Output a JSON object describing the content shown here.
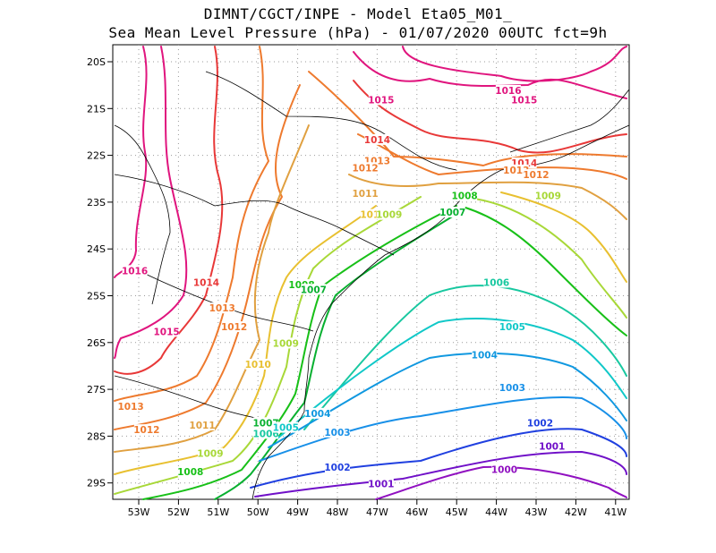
{
  "title": {
    "line1": "DIMNT/CGCT/INPE -  Model Eta05_M01_",
    "line2": "Sea Mean Level Pressure (hPa) - 01/07/2020 00UTC fct=9h"
  },
  "axes": {
    "lon_ticks": [
      "53W",
      "52W",
      "51W",
      "50W",
      "49W",
      "48W",
      "47W",
      "46W",
      "45W",
      "44W",
      "43W",
      "42W",
      "41W"
    ],
    "lat_ticks": [
      "20S",
      "21S",
      "22S",
      "23S",
      "24S",
      "25S",
      "26S",
      "27S",
      "28S",
      "29S"
    ],
    "grid": "dotted"
  },
  "colors": {
    "1016": "#e0157e",
    "1015": "#e0157e",
    "1014": "#e83838",
    "1013": "#ee7a2e",
    "1012": "#ee7a2e",
    "1011": "#e0a040",
    "1010": "#e8c030",
    "1009": "#a8d838",
    "1008": "#18c018",
    "1007": "#08b030",
    "1006": "#18c8a0",
    "1005": "#10c8c8",
    "1004": "#1098e0",
    "1003": "#1890e8",
    "1002": "#2040e0",
    "1001": "#7010c8",
    "1000": "#9010c0",
    "map_lines": "#000000"
  },
  "labels": [
    {
      "text": "1016",
      "lon": -53.1,
      "lat": -24.5,
      "level": "1016"
    },
    {
      "text": "1016",
      "lon": -43.7,
      "lat": -20.65,
      "level": "1016"
    },
    {
      "text": "1015",
      "lon": -46.9,
      "lat": -20.85,
      "level": "1015"
    },
    {
      "text": "1015",
      "lon": -43.3,
      "lat": -20.85,
      "level": "1015"
    },
    {
      "text": "1015",
      "lon": -52.3,
      "lat": -25.8,
      "level": "1015"
    },
    {
      "text": "1014",
      "lon": -51.3,
      "lat": -24.75,
      "level": "1014"
    },
    {
      "text": "1014",
      "lon": -47.0,
      "lat": -21.7,
      "level": "1014"
    },
    {
      "text": "1014",
      "lon": -43.3,
      "lat": -22.2,
      "level": "1014"
    },
    {
      "text": "1013",
      "lon": -50.9,
      "lat": -25.3,
      "level": "1013"
    },
    {
      "text": "1013",
      "lon": -53.2,
      "lat": -27.4,
      "level": "1013"
    },
    {
      "text": "1013",
      "lon": -47.0,
      "lat": -22.15,
      "level": "1013"
    },
    {
      "text": "1013",
      "lon": -43.5,
      "lat": -22.35,
      "level": "1013"
    },
    {
      "text": "1012",
      "lon": -50.6,
      "lat": -25.7,
      "level": "1012"
    },
    {
      "text": "1012",
      "lon": -52.8,
      "lat": -27.9,
      "level": "1012"
    },
    {
      "text": "1012",
      "lon": -47.3,
      "lat": -22.3,
      "level": "1012"
    },
    {
      "text": "1012",
      "lon": -43.0,
      "lat": -22.45,
      "level": "1012"
    },
    {
      "text": "1011",
      "lon": -51.4,
      "lat": -27.8,
      "level": "1011"
    },
    {
      "text": "1011",
      "lon": -47.3,
      "lat": -22.85,
      "level": "1011"
    },
    {
      "text": "1010",
      "lon": -50.0,
      "lat": -26.5,
      "level": "1010"
    },
    {
      "text": "1010",
      "lon": -47.1,
      "lat": -23.3,
      "level": "1010"
    },
    {
      "text": "1009",
      "lon": -49.3,
      "lat": -26.05,
      "level": "1009"
    },
    {
      "text": "1009",
      "lon": -51.2,
      "lat": -28.4,
      "level": "1009"
    },
    {
      "text": "1009",
      "lon": -46.7,
      "lat": -23.3,
      "level": "1009"
    },
    {
      "text": "1009",
      "lon": -42.7,
      "lat": -22.9,
      "level": "1009"
    },
    {
      "text": "1008",
      "lon": -48.9,
      "lat": -24.8,
      "level": "1008"
    },
    {
      "text": "1008",
      "lon": -51.7,
      "lat": -28.8,
      "level": "1008"
    },
    {
      "text": "1008",
      "lon": -44.8,
      "lat": -22.9,
      "level": "1008"
    },
    {
      "text": "1007",
      "lon": -48.6,
      "lat": -24.9,
      "level": "1007"
    },
    {
      "text": "1007",
      "lon": -49.8,
      "lat": -27.75,
      "level": "1007"
    },
    {
      "text": "1007",
      "lon": -45.1,
      "lat": -23.25,
      "level": "1007"
    },
    {
      "text": "1006",
      "lon": -49.8,
      "lat": -27.98,
      "level": "1006"
    },
    {
      "text": "1006",
      "lon": -44.0,
      "lat": -24.75,
      "level": "1006"
    },
    {
      "text": "1005",
      "lon": -49.3,
      "lat": -27.85,
      "level": "1005"
    },
    {
      "text": "1005",
      "lon": -43.6,
      "lat": -25.7,
      "level": "1005"
    },
    {
      "text": "1004",
      "lon": -48.5,
      "lat": -27.55,
      "level": "1004"
    },
    {
      "text": "1004",
      "lon": -44.3,
      "lat": -26.3,
      "level": "1004"
    },
    {
      "text": "1003",
      "lon": -48.0,
      "lat": -27.95,
      "level": "1003"
    },
    {
      "text": "1003",
      "lon": -43.6,
      "lat": -27.0,
      "level": "1003"
    },
    {
      "text": "1002",
      "lon": -48.0,
      "lat": -28.7,
      "level": "1002"
    },
    {
      "text": "1002",
      "lon": -42.9,
      "lat": -27.75,
      "level": "1002"
    },
    {
      "text": "1001",
      "lon": -46.9,
      "lat": -29.05,
      "level": "1001"
    },
    {
      "text": "1001",
      "lon": -42.6,
      "lat": -28.25,
      "level": "1001"
    },
    {
      "text": "1000",
      "lon": -43.8,
      "lat": -28.75,
      "level": "1000"
    }
  ]
}
